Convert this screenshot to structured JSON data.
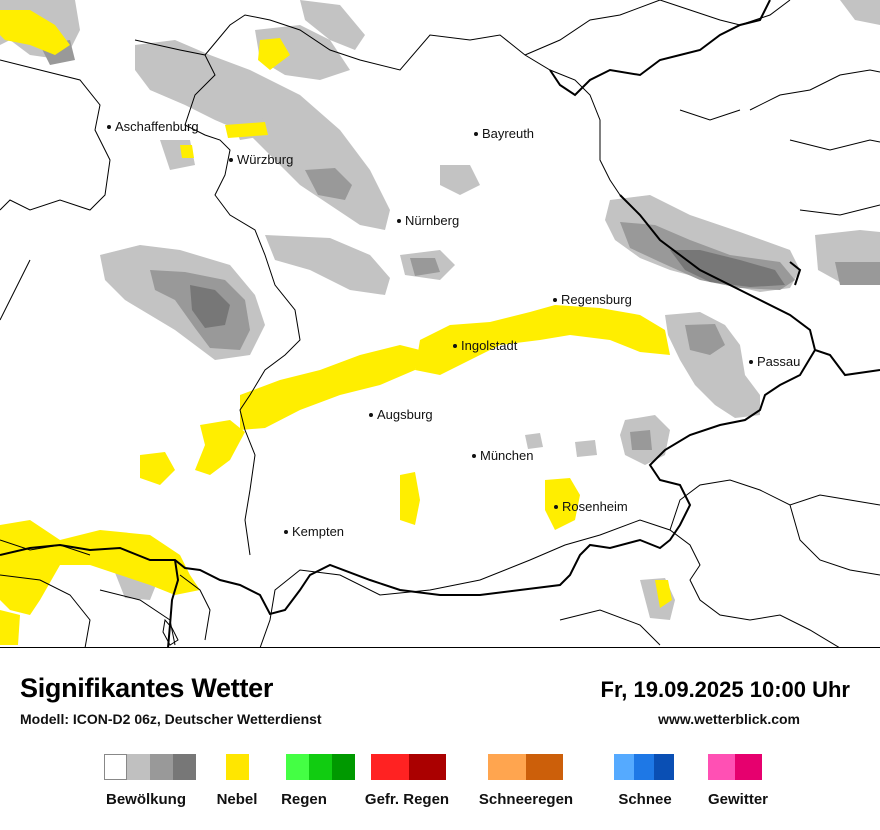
{
  "map": {
    "cities": [
      {
        "id": "aschaffenburg",
        "name": "Aschaffenburg"
      },
      {
        "id": "wuerzburg",
        "name": "Würzburg"
      },
      {
        "id": "bayreuth",
        "name": "Bayreuth"
      },
      {
        "id": "nuernberg",
        "name": "Nürnberg"
      },
      {
        "id": "regensburg",
        "name": "Regensburg"
      },
      {
        "id": "ingolstadt",
        "name": "Ingolstadt"
      },
      {
        "id": "passau",
        "name": "Passau"
      },
      {
        "id": "augsburg",
        "name": "Augsburg"
      },
      {
        "id": "muenchen",
        "name": "München"
      },
      {
        "id": "rosenheim",
        "name": "Rosenheim"
      },
      {
        "id": "kempten",
        "name": "Kempten"
      }
    ]
  },
  "footer": {
    "title": "Signifikantes Wetter",
    "model": "Modell: ICON-D2 06z, Deutscher Wetterdienst",
    "datetime": "Fr, 19.09.2025 10:00 Uhr",
    "website": "www.wetterblick.com"
  },
  "legend": [
    {
      "label": "Bewölkung",
      "colors": [
        "#ffffff",
        "#c0c0c0",
        "#999999",
        "#777777"
      ]
    },
    {
      "label": "Nebel",
      "colors": [
        "#ffe600"
      ]
    },
    {
      "label": "Regen",
      "colors": [
        "#44ff44",
        "#11cc11",
        "#009900"
      ]
    },
    {
      "label": "Gefr. Regen",
      "colors": [
        "#ff2222",
        "#aa0000"
      ]
    },
    {
      "label": "Schneeregen",
      "colors": [
        "#ffa54f",
        "#cc5f0a"
      ]
    },
    {
      "label": "Schnee",
      "colors": [
        "#55aaff",
        "#1e78e6",
        "#0a4fb4"
      ]
    },
    {
      "label": "Gewitter",
      "colors": [
        "#ff50b4",
        "#e6006e"
      ]
    }
  ]
}
